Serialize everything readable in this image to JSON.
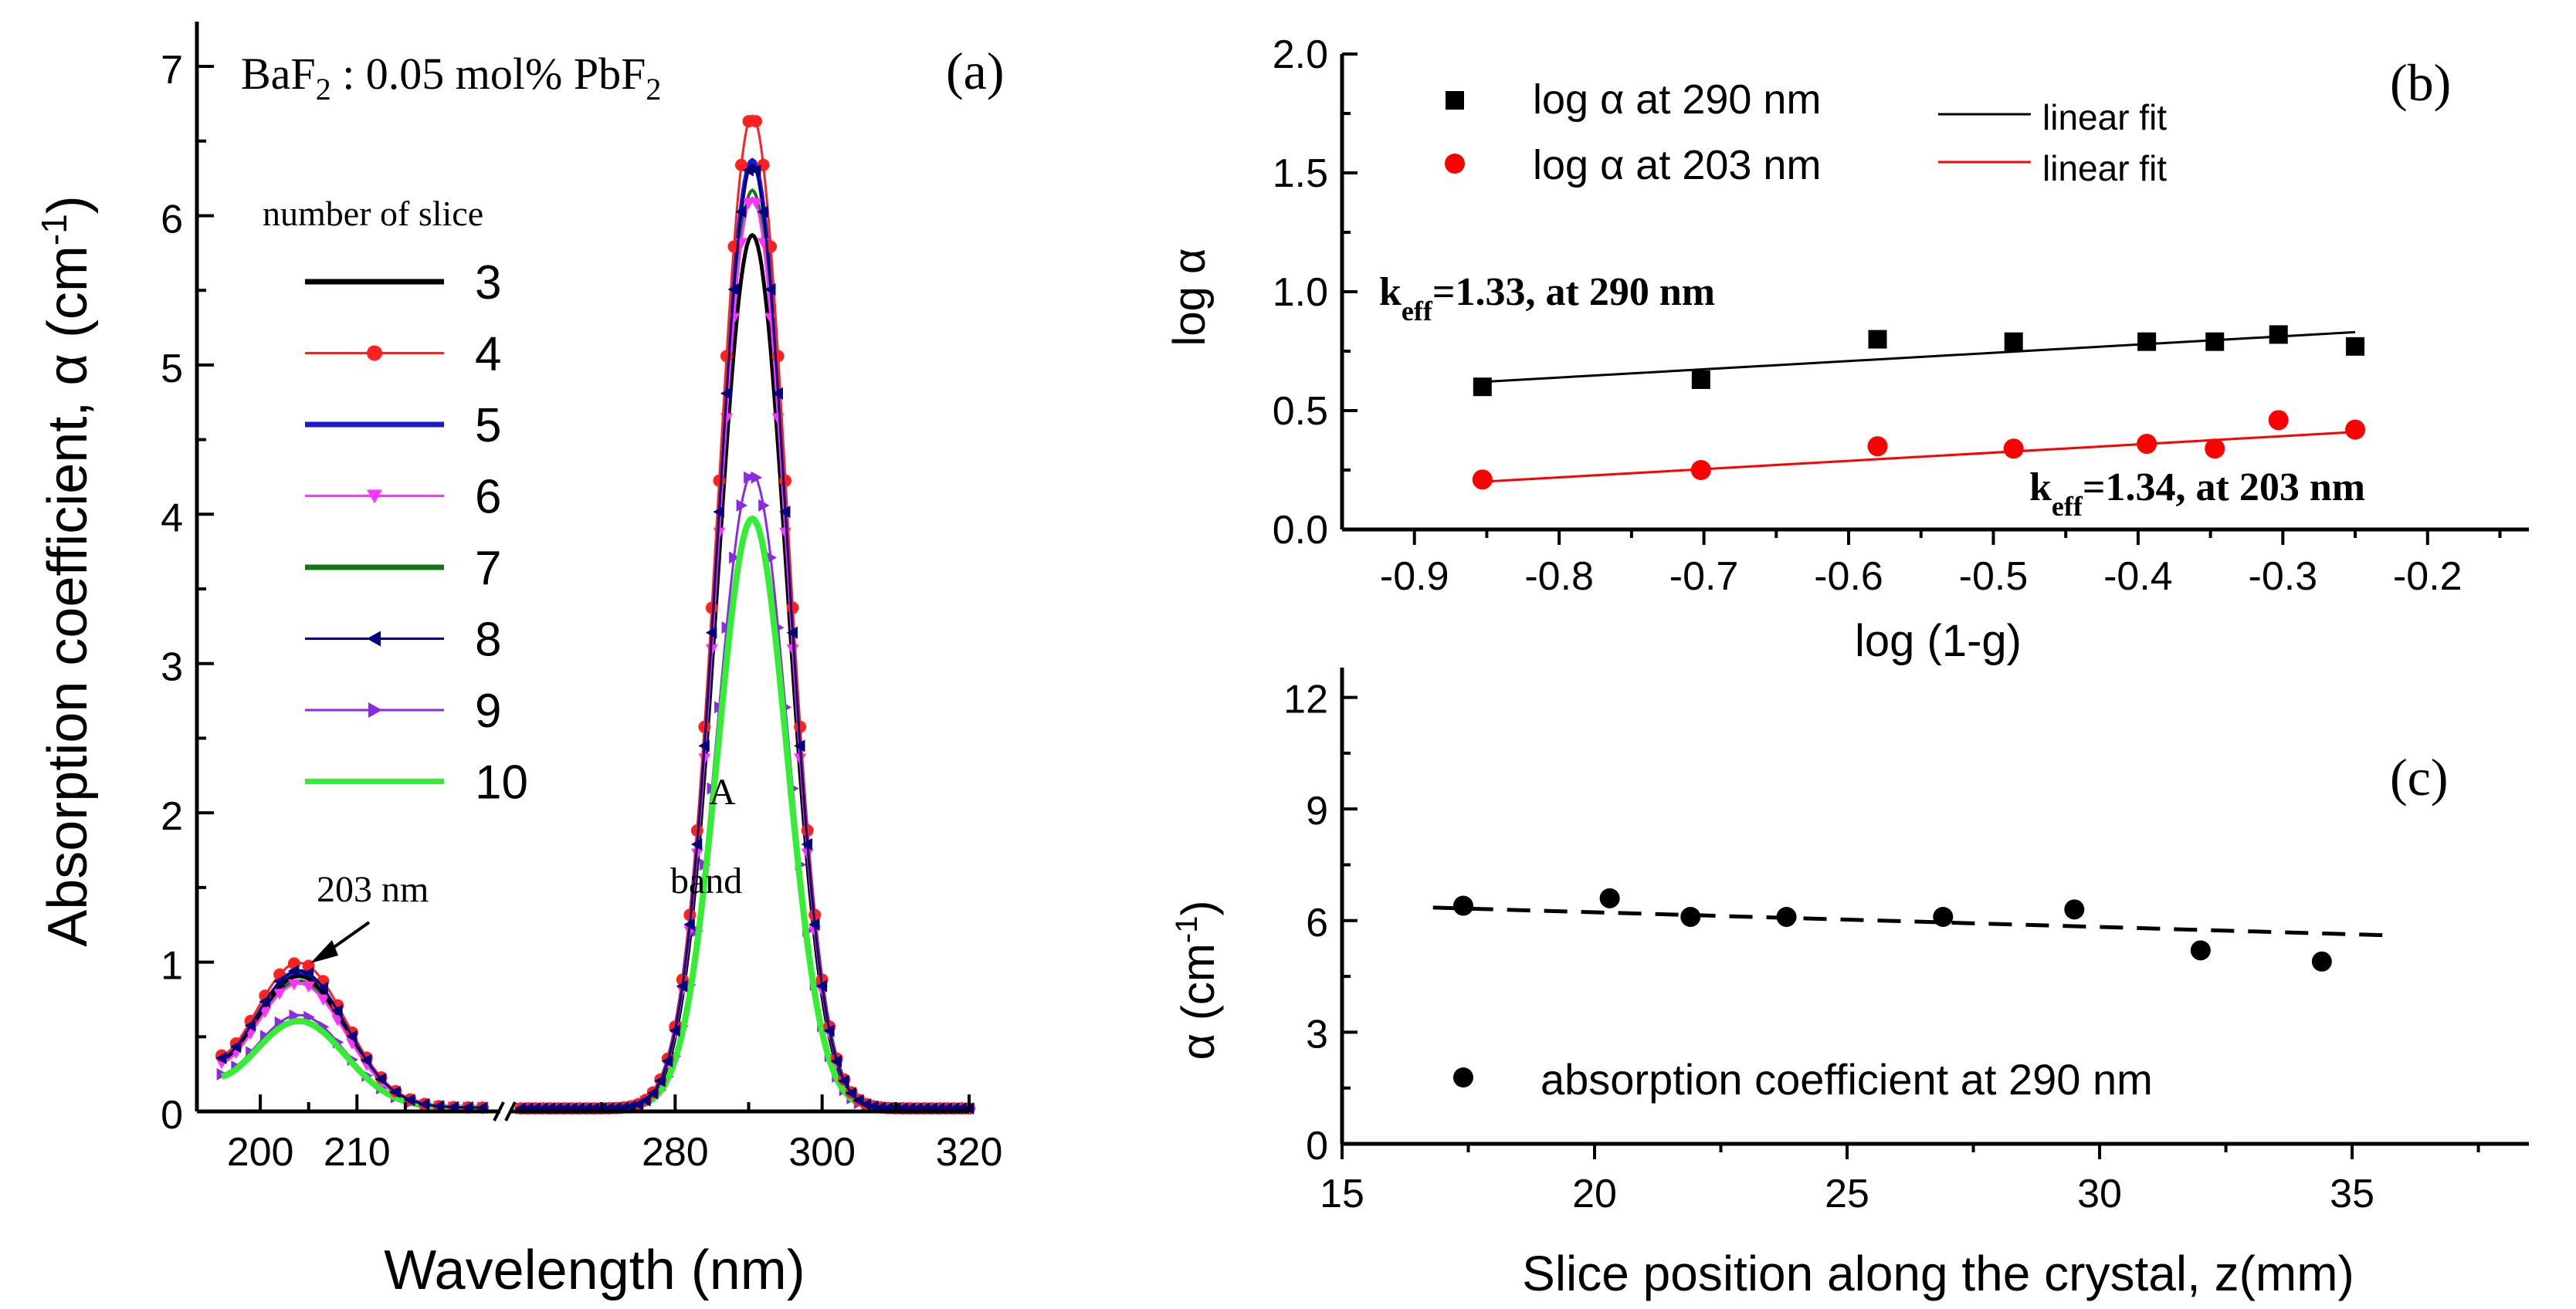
{
  "colors": {
    "s3": "#000000",
    "s4": "#ff2020",
    "s5": "#1a1acc",
    "s6": "#ff33ff",
    "s7": "#117711",
    "s8": "#000080",
    "s9": "#8a2be2",
    "s10": "#33ee33",
    "black": "#000000",
    "red": "#ff0000"
  },
  "chart_data": [
    {
      "id": "a",
      "type": "line",
      "panel_label": "(a)",
      "title": {
        "main": "BaF",
        "sub1": "2",
        "mid": " : 0.05 mol% PbF",
        "sub2": "2"
      },
      "xlabel": "Wavelength (nm)",
      "ylabel": {
        "main": "Absorption coefficient, α (cm",
        "sup": "-1",
        "end": ")"
      },
      "x_segments": [
        {
          "range": [
            194,
            223
          ],
          "ticks": [
            200,
            210
          ]
        },
        {
          "range": [
            258,
            320
          ],
          "ticks": [
            280,
            300,
            320
          ]
        }
      ],
      "ylim": [
        0,
        7.3
      ],
      "yticks": [
        0,
        1,
        2,
        3,
        4,
        5,
        6,
        7
      ],
      "legend_title": "number of slice",
      "series": [
        {
          "name": "3",
          "peak_203": 0.88,
          "peak_290": 5.85,
          "marker": "none",
          "color_key": "s3"
        },
        {
          "name": "4",
          "peak_203": 0.97,
          "peak_290": 6.65,
          "marker": "circle",
          "color_key": "s4"
        },
        {
          "name": "5",
          "peak_203": 0.9,
          "peak_290": 6.35,
          "marker": "none",
          "color_key": "s5"
        },
        {
          "name": "6",
          "peak_203": 0.83,
          "peak_290": 6.1,
          "marker": "tri-down",
          "color_key": "s6"
        },
        {
          "name": "7",
          "peak_203": 0.85,
          "peak_290": 6.15,
          "marker": "none",
          "color_key": "s7"
        },
        {
          "name": "8",
          "peak_203": 0.92,
          "peak_290": 6.32,
          "marker": "tri-left",
          "color_key": "s8"
        },
        {
          "name": "9",
          "peak_203": 0.62,
          "peak_290": 4.25,
          "marker": "tri-right",
          "color_key": "s9"
        },
        {
          "name": "10",
          "peak_203": 0.58,
          "peak_290": 3.95,
          "marker": "none",
          "color_key": "s10"
        }
      ],
      "annotations": {
        "peak1": "203 nm",
        "band1": "A",
        "band2": "band"
      }
    },
    {
      "id": "b",
      "type": "scatter",
      "panel_label": "(b)",
      "xlabel": "log (1-g)",
      "ylabel": "log α",
      "xlim": [
        -0.95,
        -0.13
      ],
      "ylim": [
        0,
        2.0
      ],
      "xticks": [
        -0.9,
        -0.8,
        -0.7,
        -0.6,
        -0.5,
        -0.4,
        -0.3,
        -0.2
      ],
      "xtick_labels": [
        "-0.9",
        "-0.8",
        "-0.7",
        "-0.6",
        "-0.5",
        "-0.4",
        "-0.3",
        "-0.2"
      ],
      "yticks": [
        0,
        0.5,
        1.0,
        1.5,
        2.0
      ],
      "ytick_labels": [
        "0.0",
        "0.5",
        "1.0",
        "1.5",
        "2.0"
      ],
      "series": [
        {
          "name": "log α at 290 nm",
          "marker": "square",
          "color_key": "black",
          "x": [
            -0.853,
            -0.702,
            -0.58,
            -0.486,
            -0.394,
            -0.347,
            -0.303,
            -0.25
          ],
          "y": [
            0.6,
            0.63,
            0.8,
            0.79,
            0.79,
            0.79,
            0.82,
            0.77
          ],
          "fit": {
            "name": "linear fit",
            "x": [
              -0.855,
              -0.25
            ],
            "y": [
              0.62,
              0.83
            ]
          }
        },
        {
          "name": "log α at 203 nm",
          "marker": "circle",
          "color_key": "red",
          "x": [
            -0.853,
            -0.702,
            -0.58,
            -0.486,
            -0.394,
            -0.347,
            -0.303,
            -0.25
          ],
          "y": [
            0.21,
            0.25,
            0.35,
            0.34,
            0.36,
            0.34,
            0.46,
            0.42
          ],
          "fit": {
            "name": "linear fit",
            "x": [
              -0.855,
              -0.25
            ],
            "y": [
              0.2,
              0.41
            ]
          }
        }
      ],
      "annotations": [
        {
          "k": "k",
          "sub": "eff",
          "rest": "=1.33,  at 290 nm",
          "color_key": "black"
        },
        {
          "k": "k",
          "sub": "eff",
          "rest": "=1.34,  at 203 nm",
          "color_key": "red"
        }
      ]
    },
    {
      "id": "c",
      "type": "scatter",
      "panel_label": "(c)",
      "xlabel": "Slice position along the crystal, z(mm)",
      "ylabel": {
        "main": "α (cm",
        "sup": "-1",
        "end": ")"
      },
      "xlim": [
        15,
        38.5
      ],
      "ylim": [
        0,
        12.8
      ],
      "xticks": [
        15,
        20,
        25,
        30,
        35
      ],
      "yticks": [
        0,
        3,
        6,
        9,
        12
      ],
      "series": [
        {
          "name": "absorption coefficient at 290 nm",
          "marker": "circle",
          "color_key": "black",
          "x": [
            17.4,
            20.3,
            21.9,
            23.8,
            26.9,
            29.5,
            32.0,
            34.4
          ],
          "y": [
            6.4,
            6.6,
            6.1,
            6.1,
            6.1,
            6.3,
            5.2,
            4.9
          ],
          "fit": {
            "style": "dashed",
            "x": [
              16.8,
              35.8
            ],
            "y": [
              6.35,
              5.6
            ]
          }
        }
      ]
    }
  ]
}
